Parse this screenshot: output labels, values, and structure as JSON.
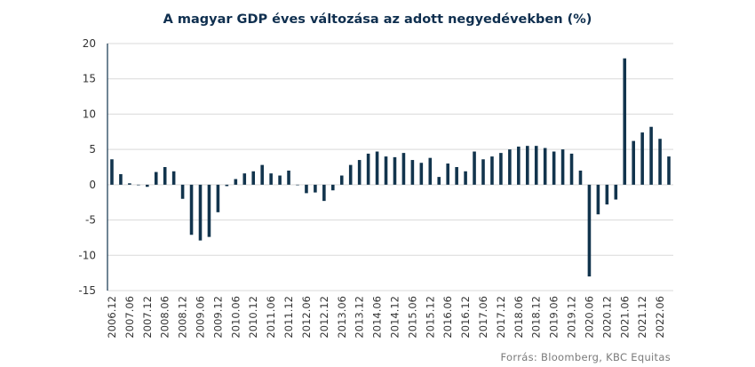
{
  "chart_data": {
    "type": "bar",
    "title": "A magyar GDP éves változása az adott negyedévekben  (%)",
    "source": "Forrás: Bloomberg,  KBC Equitas",
    "color": "#12344d",
    "ylim": [
      -15,
      20
    ],
    "yticks": [
      20,
      15,
      10,
      5,
      0,
      -5,
      -10,
      -15
    ],
    "grid": true,
    "legend": "none",
    "labels": [
      "2006.12",
      "2007.06",
      "2007.12",
      "2008.06",
      "2008.12",
      "2009.06",
      "2009.12",
      "2010.06",
      "2010.12",
      "2011.06",
      "2011.12",
      "2012.06",
      "2012.12",
      "2013.06",
      "2013.12",
      "2014.06",
      "2014.12",
      "2015.06",
      "2015.12",
      "2016.06",
      "2016.12",
      "2017.06",
      "2017.12",
      "2018.06",
      "2018.12",
      "2019.06",
      "2019.12",
      "2020.06",
      "2020.12",
      "2021.06",
      "2021.12",
      "2022.06"
    ],
    "categories": [
      "2006.12",
      "2007.03",
      "2007.06",
      "2007.09",
      "2007.12",
      "2008.03",
      "2008.06",
      "2008.09",
      "2008.12",
      "2009.03",
      "2009.06",
      "2009.09",
      "2009.12",
      "2010.03",
      "2010.06",
      "2010.09",
      "2010.12",
      "2011.03",
      "2011.06",
      "2011.09",
      "2011.12",
      "2012.03",
      "2012.06",
      "2012.09",
      "2012.12",
      "2013.03",
      "2013.06",
      "2013.09",
      "2013.12",
      "2014.03",
      "2014.06",
      "2014.09",
      "2014.12",
      "2015.03",
      "2015.06",
      "2015.09",
      "2015.12",
      "2016.03",
      "2016.06",
      "2016.09",
      "2016.12",
      "2017.03",
      "2017.06",
      "2017.09",
      "2017.12",
      "2018.03",
      "2018.06",
      "2018.09",
      "2018.12",
      "2019.03",
      "2019.06",
      "2019.09",
      "2019.12",
      "2020.03",
      "2020.06",
      "2020.09",
      "2020.12",
      "2021.03",
      "2021.06",
      "2021.09",
      "2021.12",
      "2022.03",
      "2022.06",
      "2022.09"
    ],
    "values": [
      3.6,
      1.5,
      0.2,
      0.0,
      -0.3,
      1.8,
      2.5,
      1.9,
      -2.0,
      -7.1,
      -7.9,
      -7.4,
      -3.9,
      -0.2,
      0.8,
      1.6,
      1.9,
      2.8,
      1.6,
      1.3,
      2.0,
      0.0,
      -1.2,
      -1.1,
      -2.3,
      -0.8,
      1.3,
      2.8,
      3.5,
      4.4,
      4.7,
      4.0,
      3.9,
      4.5,
      3.5,
      3.1,
      3.8,
      1.1,
      3.0,
      2.5,
      1.9,
      4.7,
      3.6,
      4.0,
      4.5,
      5.0,
      5.4,
      5.5,
      5.5,
      5.2,
      4.7,
      5.0,
      4.4,
      2.0,
      -13.0,
      -4.2,
      -2.8,
      -2.1,
      17.9,
      6.2,
      7.4,
      8.2,
      6.5,
      4.0
    ]
  }
}
